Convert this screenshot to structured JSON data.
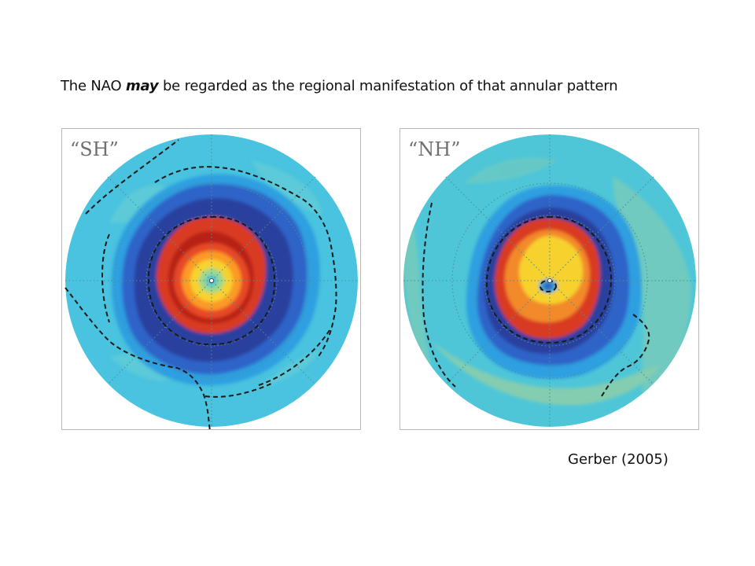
{
  "headline": {
    "before": "The NAO ",
    "emphasis": "may",
    "after": " be regarded as the regional manifestation of that annular pattern"
  },
  "panels": [
    {
      "id": "sh",
      "label": "“SH”",
      "palette": [
        "#49c3df",
        "#2f9fe0",
        "#2d64c8",
        "#2a3f9e",
        "#d93a22",
        "#b01e18",
        "#fb9a28",
        "#f7d22f",
        "#7fd0c6"
      ],
      "annular": true
    },
    {
      "id": "nh",
      "label": "“NH”",
      "palette": [
        "#4ec6d8",
        "#2f9fe0",
        "#2d64c8",
        "#2a3f9e",
        "#d93a22",
        "#b01e18",
        "#fb9a28",
        "#f7d22f",
        "#6fcac0"
      ],
      "annular": false
    }
  ],
  "citation": "Gerber (2005)"
}
